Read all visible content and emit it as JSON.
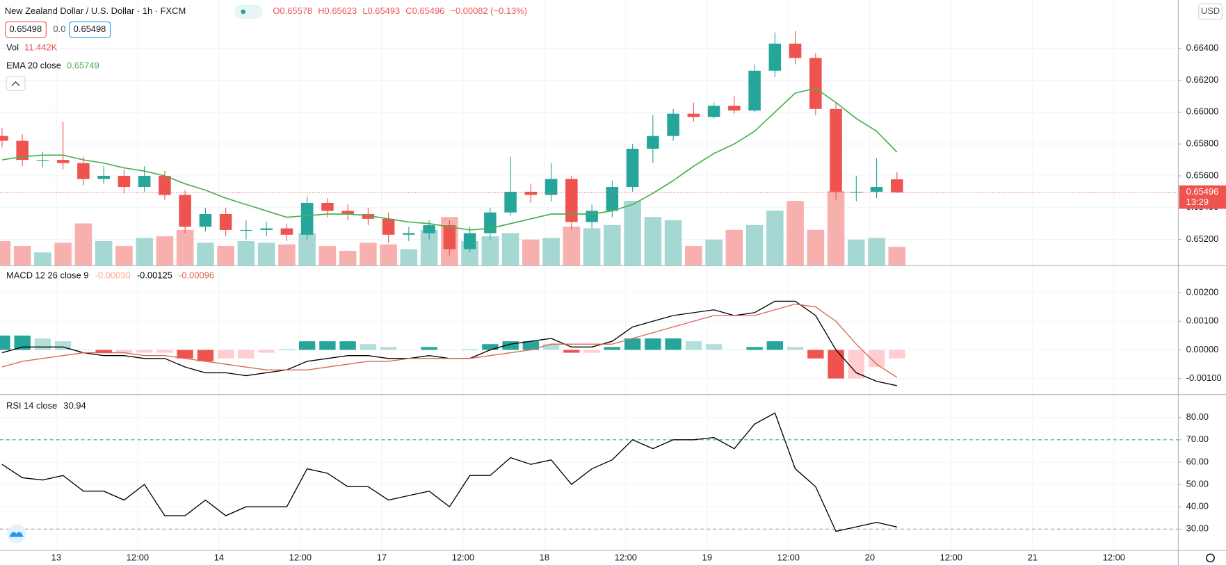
{
  "header": {
    "title": "New Zealand Dollar / U.S. Dollar · 1h · FXCM",
    "ohlc": [
      "O0.65578",
      "H0.65623",
      "L0.65493",
      "C0.65496"
    ],
    "change": "−0.00082 (−0.13%)",
    "bid": "0.65498",
    "spread": "0.0",
    "ask": "0.65498",
    "currency": "USD",
    "countdown": "13:29"
  },
  "chart_data": [
    {
      "type": "candlestick",
      "x": [
        0,
        3,
        6,
        9,
        12,
        15,
        18,
        21,
        24,
        27,
        30,
        33,
        36,
        39,
        42,
        45,
        48,
        51,
        54,
        57,
        60,
        63,
        66,
        69,
        72,
        75,
        78,
        81,
        84,
        87,
        90,
        93,
        96,
        99,
        102,
        105,
        108,
        111,
        114,
        117,
        120,
        123,
        126,
        129,
        132
      ],
      "xlim": [
        -0.3,
        173.5
      ],
      "xticks": [
        {
          "value": 8,
          "label": "13"
        },
        {
          "value": 20,
          "label": "12:00"
        },
        {
          "value": 32,
          "label": "14"
        },
        {
          "value": 44,
          "label": "12:00"
        },
        {
          "value": 56,
          "label": "17"
        },
        {
          "value": 68,
          "label": "12:00"
        },
        {
          "value": 80,
          "label": "18"
        },
        {
          "value": 92,
          "label": "12:00"
        },
        {
          "value": 104,
          "label": "19"
        },
        {
          "value": 116,
          "label": "12:00"
        },
        {
          "value": 128,
          "label": "20"
        },
        {
          "value": 140,
          "label": "12:00"
        },
        {
          "value": 152,
          "label": "21"
        },
        {
          "value": 164,
          "label": "12:00"
        }
      ],
      "open": [
        0.6585,
        0.6582,
        0.657,
        0.657,
        0.6568,
        0.6558,
        0.656,
        0.6553,
        0.656,
        0.6548,
        0.6528,
        0.6536,
        0.6526,
        0.6526,
        0.6527,
        0.6523,
        0.6543,
        0.6538,
        0.6536,
        0.6533,
        0.6523,
        0.6524,
        0.6529,
        0.6514,
        0.6524,
        0.6537,
        0.655,
        0.6548,
        0.6558,
        0.6531,
        0.6538,
        0.6553,
        0.6577,
        0.6585,
        0.6599,
        0.6597,
        0.6604,
        0.6601,
        0.6626,
        0.6643,
        0.6634,
        0.6602,
        0.655,
        0.655,
        0.65578
      ],
      "high": [
        0.659,
        0.6586,
        0.6575,
        0.6594,
        0.6572,
        0.6566,
        0.6564,
        0.6566,
        0.6563,
        0.6551,
        0.654,
        0.654,
        0.6532,
        0.6531,
        0.653,
        0.6547,
        0.6546,
        0.6542,
        0.654,
        0.6537,
        0.6528,
        0.6532,
        0.6532,
        0.6528,
        0.654,
        0.6572,
        0.6555,
        0.6568,
        0.656,
        0.6542,
        0.6557,
        0.658,
        0.6598,
        0.6602,
        0.6606,
        0.6606,
        0.661,
        0.663,
        0.665,
        0.6651,
        0.6637,
        0.6606,
        0.656,
        0.6571,
        0.65623
      ],
      "low": [
        0.6578,
        0.6566,
        0.6565,
        0.6564,
        0.6554,
        0.6555,
        0.6549,
        0.655,
        0.6545,
        0.6524,
        0.6525,
        0.6522,
        0.652,
        0.6522,
        0.6519,
        0.652,
        0.6534,
        0.6532,
        0.6529,
        0.6518,
        0.6519,
        0.652,
        0.651,
        0.6512,
        0.652,
        0.6535,
        0.6543,
        0.6544,
        0.6526,
        0.6527,
        0.6534,
        0.655,
        0.6568,
        0.6582,
        0.6594,
        0.6596,
        0.6599,
        0.66,
        0.6622,
        0.663,
        0.6598,
        0.6545,
        0.6544,
        0.6546,
        0.65493
      ],
      "close": [
        0.6582,
        0.657,
        0.657,
        0.6568,
        0.6558,
        0.656,
        0.6553,
        0.656,
        0.6548,
        0.6528,
        0.6536,
        0.6526,
        0.6526,
        0.6527,
        0.6523,
        0.6543,
        0.6538,
        0.6536,
        0.6533,
        0.6523,
        0.6524,
        0.6529,
        0.6514,
        0.6524,
        0.6537,
        0.655,
        0.6548,
        0.6558,
        0.6531,
        0.6538,
        0.6553,
        0.6577,
        0.6585,
        0.6599,
        0.6597,
        0.6604,
        0.6601,
        0.6626,
        0.6643,
        0.6634,
        0.6602,
        0.655,
        0.655,
        0.6553,
        0.65496
      ],
      "up_color": "#26a69a",
      "down_color": "#ef5350",
      "series": [
        {
          "name": "EMA 20 close",
          "color": "#4caf50",
          "values": [
            0.657,
            0.6572,
            0.6573,
            0.6573,
            0.657,
            0.6568,
            0.6565,
            0.6563,
            0.656,
            0.6555,
            0.6551,
            0.6546,
            0.6542,
            0.6538,
            0.6534,
            0.6535,
            0.6536,
            0.6536,
            0.6535,
            0.6533,
            0.6531,
            0.653,
            0.6528,
            0.6526,
            0.6527,
            0.653,
            0.6533,
            0.6536,
            0.6536,
            0.6536,
            0.6538,
            0.6542,
            0.6549,
            0.6557,
            0.6566,
            0.6574,
            0.658,
            0.6588,
            0.66,
            0.6612,
            0.6615,
            0.6606,
            0.6596,
            0.6588,
            0.65749
          ]
        }
      ],
      "volume": {
        "name": "Vol",
        "legend_value": "11.442K",
        "values": [
          15,
          12,
          8,
          14,
          26,
          15,
          12,
          17,
          18,
          22,
          14,
          12,
          15,
          14,
          13,
          20,
          12,
          9,
          14,
          13,
          10,
          22,
          30,
          15,
          18,
          20,
          16,
          17,
          24,
          23,
          25,
          40,
          30,
          28,
          12,
          16,
          22,
          25,
          34,
          40,
          22,
          46,
          16,
          17,
          11.442
        ]
      },
      "ylim": [
        0.65038,
        0.66704
      ],
      "yticks": [
        {
          "value": 0.652,
          "label": "0.65200"
        },
        {
          "value": 0.654,
          "label": "0.65400"
        },
        {
          "value": 0.656,
          "label": "0.65600"
        },
        {
          "value": 0.658,
          "label": "0.65800"
        },
        {
          "value": 0.66,
          "label": "0.66000"
        },
        {
          "value": 0.662,
          "label": "0.66200"
        },
        {
          "value": 0.664,
          "label": "0.66400"
        }
      ],
      "grid": true
    },
    {
      "type": "macd",
      "name": "MACD 12 26 close 9",
      "legend_values": [
        "-0.00030",
        "-0.00125",
        "-0.00096"
      ],
      "histogram": [
        0.0005,
        0.0005,
        0.0004,
        0.0003,
        0.0,
        -0.0001,
        -0.0001,
        -0.0001,
        -0.0001,
        -0.0003,
        -0.0004,
        -0.0003,
        -0.0003,
        -0.0001,
        0.0,
        0.0003,
        0.0003,
        0.0003,
        0.0002,
        0.0001,
        0.0,
        0.0001,
        0.0,
        0.0,
        0.0002,
        0.0003,
        0.0003,
        0.0002,
        -0.0001,
        -0.0001,
        0.0001,
        0.0004,
        0.0004,
        0.0004,
        0.0003,
        0.0002,
        0.0,
        0.0001,
        0.0003,
        0.0001,
        -0.0003,
        -0.001,
        -0.001,
        -0.0006,
        -0.0003
      ],
      "series": [
        {
          "name": "MACD",
          "color": "#000000",
          "values": [
            -0.0001,
            0.0001,
            0.0001,
            0.0001,
            -0.0001,
            -0.0002,
            -0.0002,
            -0.0003,
            -0.0003,
            -0.0006,
            -0.0008,
            -0.0008,
            -0.0009,
            -0.0008,
            -0.0007,
            -0.0004,
            -0.0003,
            -0.0002,
            -0.0002,
            -0.0003,
            -0.0003,
            -0.0002,
            -0.0003,
            -0.0003,
            0.0,
            0.0002,
            0.0003,
            0.0004,
            0.0001,
            0.0001,
            0.0003,
            0.0008,
            0.001,
            0.0012,
            0.0013,
            0.0014,
            0.0012,
            0.0013,
            0.0017,
            0.0017,
            0.0012,
            0.0,
            -0.0008,
            -0.0011,
            -0.00125
          ]
        },
        {
          "name": "Signal",
          "color": "#d9655a",
          "values": [
            -0.0006,
            -0.0004,
            -0.0003,
            -0.0002,
            -0.0001,
            -0.0001,
            -0.0001,
            -0.0002,
            -0.0002,
            -0.0003,
            -0.0004,
            -0.0005,
            -0.0006,
            -0.0007,
            -0.0007,
            -0.0007,
            -0.0006,
            -0.0005,
            -0.0004,
            -0.0004,
            -0.0003,
            -0.0003,
            -0.0003,
            -0.0003,
            -0.0002,
            -0.0001,
            0.0,
            0.0002,
            0.0002,
            0.0002,
            0.0002,
            0.0004,
            0.0006,
            0.0008,
            0.001,
            0.0012,
            0.0012,
            0.0012,
            0.0014,
            0.0016,
            0.0015,
            0.001,
            0.0002,
            -0.0005,
            -0.00096
          ]
        }
      ],
      "ylim": [
        -0.001545,
        0.002926
      ],
      "yticks": [
        {
          "value": -0.001,
          "label": "-0.00100"
        },
        {
          "value": 0,
          "label": "0.00000"
        },
        {
          "value": 0.001,
          "label": "0.00100"
        },
        {
          "value": 0.002,
          "label": "0.00200"
        }
      ]
    },
    {
      "type": "line",
      "name": "RSI 14 close",
      "series": [
        {
          "name": "RSI",
          "color": "#000000",
          "values": [
            59,
            53,
            52,
            54,
            47,
            47,
            43,
            50,
            36,
            36,
            43,
            36,
            40,
            40,
            40,
            57,
            55,
            49,
            49,
            43,
            45,
            47,
            40,
            54,
            54,
            62,
            59,
            61,
            50,
            57,
            61,
            70,
            66,
            70,
            70,
            71,
            66,
            77,
            82,
            57,
            49,
            29,
            31,
            33,
            30.94
          ]
        }
      ],
      "bands": [
        70,
        30
      ],
      "ylim": [
        20.56,
        90.1
      ],
      "yticks": [
        {
          "value": 30,
          "label": "30.00"
        },
        {
          "value": 40,
          "label": "40.00"
        },
        {
          "value": 50,
          "label": "50.00"
        },
        {
          "value": 60,
          "label": "60.00"
        },
        {
          "value": 70,
          "label": "70.00"
        },
        {
          "value": 80,
          "label": "80.00"
        }
      ]
    }
  ]
}
